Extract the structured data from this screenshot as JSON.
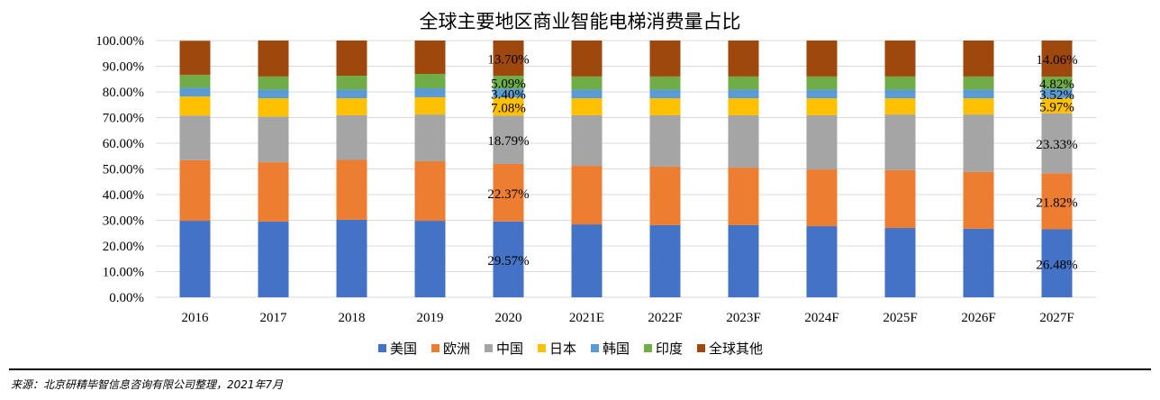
{
  "chart_data": {
    "type": "bar",
    "stacked": "percent",
    "title": "全球主要地区商业智能电梯消费量占比",
    "categories": [
      "2016",
      "2017",
      "2018",
      "2019",
      "2020",
      "2021E",
      "2022F",
      "2023F",
      "2024F",
      "2025F",
      "2026F",
      "2027F"
    ],
    "ylim": [
      0,
      100
    ],
    "yticks": [
      "0.00%",
      "10.00%",
      "20.00%",
      "30.00%",
      "40.00%",
      "50.00%",
      "60.00%",
      "70.00%",
      "80.00%",
      "90.00%",
      "100.00%"
    ],
    "grid": true,
    "legend_position": "bottom",
    "series": [
      {
        "name": "美国",
        "color": "#4472C4",
        "values": [
          29.8,
          29.5,
          30.2,
          29.8,
          29.57,
          28.4,
          28.1,
          28.1,
          27.7,
          27.0,
          26.7,
          26.48
        ]
      },
      {
        "name": "欧洲",
        "color": "#ED7D31",
        "values": [
          23.6,
          23.1,
          23.3,
          23.2,
          22.37,
          22.8,
          22.8,
          22.4,
          22.1,
          22.5,
          22.1,
          21.82
        ]
      },
      {
        "name": "中国",
        "color": "#A5A5A5",
        "values": [
          17.4,
          17.8,
          17.4,
          18.2,
          18.79,
          19.7,
          20.0,
          20.4,
          21.1,
          21.7,
          22.4,
          23.33
        ]
      },
      {
        "name": "日本",
        "color": "#FFC000",
        "values": [
          7.4,
          7.1,
          6.6,
          6.7,
          7.08,
          6.6,
          6.6,
          6.6,
          6.6,
          6.3,
          6.3,
          5.97
        ]
      },
      {
        "name": "韩国",
        "color": "#5B9BD5",
        "values": [
          3.4,
          3.4,
          3.4,
          3.5,
          3.4,
          3.4,
          3.4,
          3.4,
          3.4,
          3.4,
          3.4,
          3.52
        ]
      },
      {
        "name": "印度",
        "color": "#70AD47",
        "values": [
          5.0,
          5.1,
          5.4,
          5.6,
          5.09,
          5.1,
          5.1,
          5.1,
          5.1,
          5.1,
          5.1,
          4.82
        ]
      },
      {
        "name": "全球其他",
        "color": "#9E480E",
        "values": [
          13.3,
          14.0,
          13.7,
          13.0,
          13.7,
          14.0,
          14.0,
          14.0,
          14.0,
          14.0,
          14.0,
          14.06
        ]
      }
    ],
    "data_labels": {
      "2020": [
        "29.57%",
        "22.37%",
        "18.79%",
        "7.08%",
        "3.40%",
        "5.09%",
        "13.70%"
      ],
      "2027F": [
        "26.48%",
        "21.82%",
        "23.33%",
        "5.97%",
        "3.52%",
        "4.82%",
        "14.06%"
      ]
    }
  },
  "source": "来源：北京研精毕智信息咨询有限公司整理，2021年7月"
}
